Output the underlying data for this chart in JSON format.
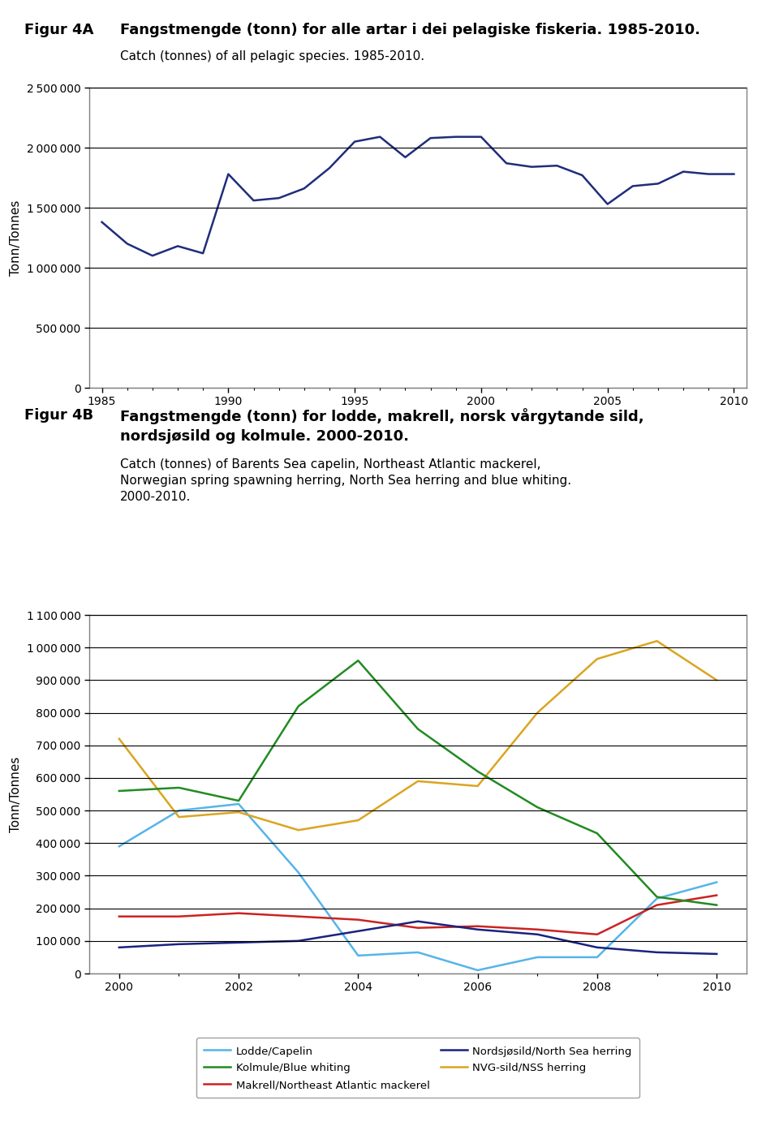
{
  "figA_title_bold": "Fangstmengde (tonn) for alle artar i dei pelagiske fiskeria. 1985-2010.",
  "figA_title_normal": "Catch (tonnes) of all pelagic species. 1985-2010.",
  "figA_label": "Figur 4A",
  "figA_ylabel": "Tonn/Tonnes",
  "figA_years": [
    1985,
    1986,
    1987,
    1988,
    1989,
    1990,
    1991,
    1992,
    1993,
    1994,
    1995,
    1996,
    1997,
    1998,
    1999,
    2000,
    2001,
    2002,
    2003,
    2004,
    2005,
    2006,
    2007,
    2008,
    2009,
    2010
  ],
  "figA_values": [
    1380000,
    1200000,
    1100000,
    1180000,
    1120000,
    1780000,
    1560000,
    1580000,
    1660000,
    1830000,
    2050000,
    2090000,
    1920000,
    2080000,
    2090000,
    2090000,
    1870000,
    1840000,
    1850000,
    1770000,
    1530000,
    1680000,
    1700000,
    1800000,
    1780000,
    1780000
  ],
  "figA_ylim": [
    0,
    2500000
  ],
  "figA_yticks": [
    0,
    500000,
    1000000,
    1500000,
    2000000,
    2500000
  ],
  "figA_xticks": [
    1985,
    1990,
    1995,
    2000,
    2005,
    2010
  ],
  "figA_line_color": "#1F2D7B",
  "figB_ylabel": "Tonn/Tonnes",
  "figB_years": [
    2000,
    2001,
    2002,
    2003,
    2004,
    2005,
    2006,
    2007,
    2008,
    2009,
    2010
  ],
  "figB_ylim": [
    0,
    1100000
  ],
  "figB_yticks": [
    0,
    100000,
    200000,
    300000,
    400000,
    500000,
    600000,
    700000,
    800000,
    900000,
    1000000,
    1100000
  ],
  "figB_xticks": [
    2000,
    2002,
    2004,
    2006,
    2008,
    2010
  ],
  "lodde": [
    390000,
    500000,
    520000,
    310000,
    55000,
    65000,
    10000,
    50000,
    50000,
    230000,
    280000
  ],
  "lodde_color": "#56B4E9",
  "lodde_label": "Lodde/Capelin",
  "makrell": [
    175000,
    175000,
    185000,
    175000,
    165000,
    140000,
    145000,
    135000,
    120000,
    210000,
    240000
  ],
  "makrell_color": "#CC2222",
  "makrell_label": "Makrell/Northeast Atlantic mackerel",
  "nvg_sild": [
    720000,
    480000,
    495000,
    440000,
    470000,
    590000,
    575000,
    800000,
    965000,
    1020000,
    900000
  ],
  "nvg_sild_color": "#DAA520",
  "nvg_sild_label": "NVG-sild/NSS herring",
  "kolmule": [
    560000,
    570000,
    530000,
    820000,
    960000,
    750000,
    620000,
    510000,
    430000,
    235000,
    210000
  ],
  "kolmule_color": "#228B22",
  "kolmule_label": "Kolmule/Blue whiting",
  "nordsjosild": [
    80000,
    90000,
    95000,
    100000,
    130000,
    160000,
    135000,
    120000,
    80000,
    65000,
    60000
  ],
  "nordsjosild_color": "#1A237E",
  "nordsjosild_label": "Nordsjøsild/North Sea herring",
  "bg_color": "#ffffff",
  "grid_color": "#000000",
  "border_color": "#808080"
}
